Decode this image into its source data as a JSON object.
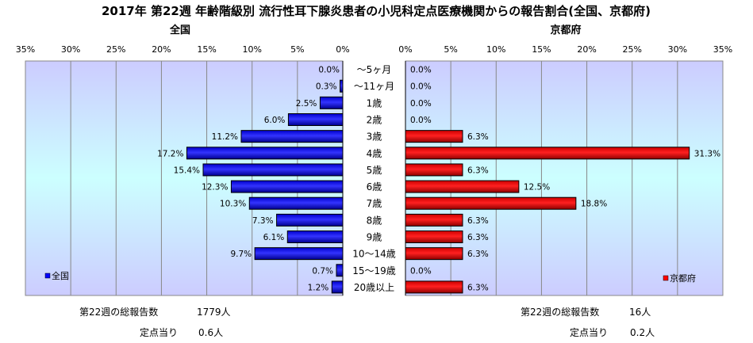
{
  "chart_data": {
    "type": "bar",
    "title": "2017年 第22週 年齢階級別 流行性耳下腺炎患者の小児科定点医療機関からの報告割合(全国、京都府)",
    "categories": [
      "～5ヶ月",
      "～11ヶ月",
      "1歳",
      "2歳",
      "3歳",
      "4歳",
      "5歳",
      "6歳",
      "7歳",
      "8歳",
      "9歳",
      "10～14歳",
      "15～19歳",
      "20歳以上"
    ],
    "series": [
      {
        "name": "全国",
        "color": "#0000FF",
        "values": [
          0.0,
          0.3,
          2.5,
          6.0,
          11.2,
          17.2,
          15.4,
          12.3,
          10.3,
          7.3,
          6.1,
          9.7,
          0.7,
          1.2
        ],
        "labels": [
          "0.0%",
          "0.3%",
          "2.5%",
          "6.0%",
          "11.2%",
          "17.2%",
          "15.4%",
          "12.3%",
          "10.3%",
          "7.3%",
          "6.1%",
          "9.7%",
          "0.7%",
          "1.2%"
        ]
      },
      {
        "name": "京都府",
        "color": "#FF0000",
        "values": [
          0.0,
          0.0,
          0.0,
          0.0,
          6.3,
          31.3,
          6.3,
          12.5,
          18.8,
          6.3,
          6.3,
          6.3,
          0.0,
          6.3
        ],
        "labels": [
          "0.0%",
          "0.0%",
          "0.0%",
          "0.0%",
          "6.3%",
          "31.3%",
          "6.3%",
          "12.5%",
          "18.8%",
          "6.3%",
          "6.3%",
          "6.3%",
          "0.0%",
          "6.3%"
        ]
      }
    ],
    "panel_titles": {
      "left": "全国",
      "right": "京都府"
    },
    "xlim": [
      0,
      35
    ],
    "ticks": [
      "0%",
      "5%",
      "10%",
      "15%",
      "20%",
      "25%",
      "30%",
      "35%"
    ],
    "grid": true,
    "legend": {
      "left": "全国",
      "right": "京都府",
      "placement": "bottom-left / bottom-right"
    }
  },
  "footer": {
    "left": {
      "total_label": "第22週の総報告数",
      "total_value": "1779人",
      "per_label": "定点当り",
      "per_value": "0.6人"
    },
    "right": {
      "total_label": "第22週の総報告数",
      "total_value": "16人",
      "per_label": "定点当り",
      "per_value": "0.2人"
    }
  }
}
